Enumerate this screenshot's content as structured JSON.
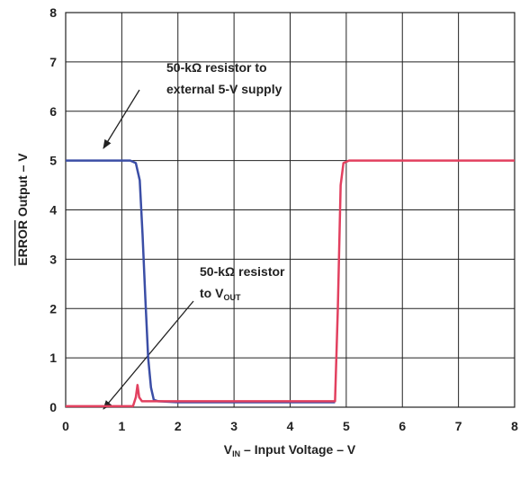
{
  "chart_data": {
    "type": "line",
    "xlabel": [
      "V",
      "IN",
      " – Input Voltage – V"
    ],
    "ylabel": [
      "ERROR",
      " Output – V"
    ],
    "xlim": [
      0,
      8
    ],
    "ylim": [
      0,
      8
    ],
    "xticks": [
      0,
      1,
      2,
      3,
      4,
      5,
      6,
      7,
      8
    ],
    "yticks": [
      0,
      1,
      2,
      3,
      4,
      5,
      6,
      7,
      8
    ],
    "grid": true,
    "annotations": [
      {
        "lines": [
          [
            "50-kΩ resistor to"
          ],
          [
            "external 5-V supply"
          ]
        ]
      },
      {
        "lines": [
          [
            "50-kΩ resistor"
          ],
          [
            "to V",
            "OUT"
          ]
        ]
      }
    ],
    "series": [
      {
        "color": "#3b4ea6",
        "x": [
          0,
          1.15,
          1.25,
          1.32,
          1.37,
          1.42,
          1.47,
          1.52,
          1.57,
          1.65,
          2.0,
          4.8
        ],
        "values": [
          5,
          5,
          4.95,
          4.6,
          3.5,
          2.2,
          1.0,
          0.4,
          0.15,
          0.12,
          0.1,
          0.1
        ]
      },
      {
        "color": "#e2405f",
        "x": [
          0,
          1.2,
          1.25,
          1.28,
          1.31,
          1.36,
          1.6,
          4.8,
          4.85,
          4.9,
          4.95,
          5.05,
          8
        ],
        "values": [
          0.02,
          0.02,
          0.2,
          0.45,
          0.2,
          0.12,
          0.12,
          0.12,
          2.0,
          4.5,
          4.95,
          5.0,
          5.0
        ]
      }
    ]
  }
}
